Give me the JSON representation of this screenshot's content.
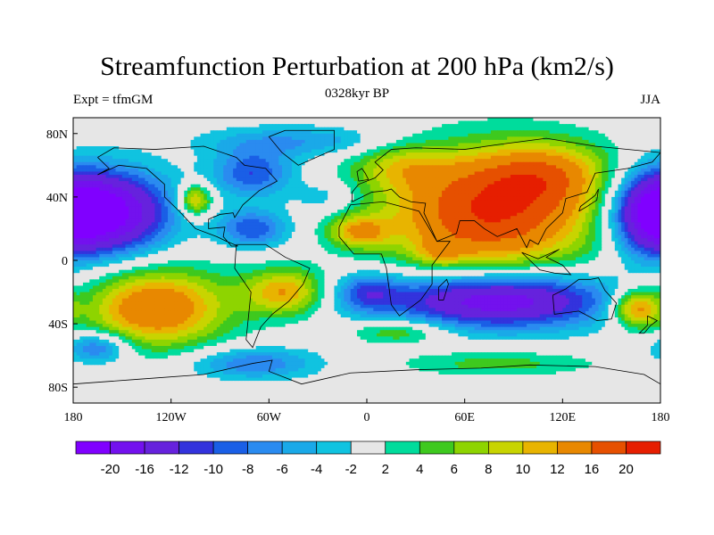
{
  "title": "Streamfunction Perturbation at 200 hPa (km2/s)",
  "subtitle_left": "Expt = tfmGM",
  "subtitle_center": "0328kyr BP",
  "subtitle_right": "JJA",
  "map": {
    "lon_range": [
      -180,
      180
    ],
    "lat_range": [
      -90,
      90
    ],
    "background_value_color": "#e6e6e6",
    "x_ticks": [
      {
        "lon": -180,
        "label": "180"
      },
      {
        "lon": -120,
        "label": "120W"
      },
      {
        "lon": -60,
        "label": "60W"
      },
      {
        "lon": 0,
        "label": "0"
      },
      {
        "lon": 60,
        "label": "60E"
      },
      {
        "lon": 120,
        "label": "120E"
      },
      {
        "lon": 180,
        "label": "180"
      }
    ],
    "y_ticks": [
      {
        "lat": 80,
        "label": "80N"
      },
      {
        "lat": 40,
        "label": "40N"
      },
      {
        "lat": 0,
        "label": "0"
      },
      {
        "lat": -40,
        "label": "40S"
      },
      {
        "lat": -80,
        "label": "80S"
      }
    ],
    "features": [
      {
        "name": "asia-high",
        "lon": 75,
        "lat": 30,
        "rlon": 65,
        "rlat": 38,
        "peak": 20
      },
      {
        "name": "east-asia-high-extension",
        "lon": 110,
        "lat": 55,
        "rlon": 40,
        "rlat": 20,
        "peak": 9
      },
      {
        "name": "europe-ridge",
        "lon": 20,
        "lat": 60,
        "rlon": 30,
        "rlat": 15,
        "peak": 6
      },
      {
        "name": "north-pacific-low-west",
        "lon": 175,
        "lat": 30,
        "rlon": 25,
        "rlat": 26,
        "peak": -20
      },
      {
        "name": "north-pacific-low-east",
        "lon": -155,
        "lat": 30,
        "rlon": 35,
        "rlat": 26,
        "peak": -20
      },
      {
        "name": "pacific-small-high",
        "lon": -105,
        "lat": 38,
        "rlon": 10,
        "rlat": 10,
        "peak": 12
      },
      {
        "name": "north-america-low",
        "lon": -70,
        "lat": 55,
        "rlon": 25,
        "rlat": 15,
        "peak": -10
      },
      {
        "name": "caribbean-low",
        "lon": -70,
        "lat": 20,
        "rlon": 22,
        "rlat": 12,
        "peak": -10
      },
      {
        "name": "arctic-low",
        "lon": -40,
        "lat": 75,
        "rlon": 60,
        "rlat": 10,
        "peak": -6
      },
      {
        "name": "atlantic-low",
        "lon": -25,
        "lat": 40,
        "rlon": 20,
        "rlat": 10,
        "peak": -4
      },
      {
        "name": "africa-high",
        "lon": -5,
        "lat": 18,
        "rlon": 18,
        "rlat": 10,
        "peak": 10
      },
      {
        "name": "arabia-high",
        "lon": 45,
        "lat": 5,
        "rlon": 14,
        "rlat": 8,
        "peak": 5
      },
      {
        "name": "indian-ocean-low",
        "lon": 80,
        "lat": -25,
        "rlon": 70,
        "rlat": 18,
        "peak": -20
      },
      {
        "name": "south-pacific-high",
        "lon": -130,
        "lat": -30,
        "rlon": 45,
        "rlat": 25,
        "peak": 16
      },
      {
        "name": "south-america-high",
        "lon": -50,
        "lat": -20,
        "rlon": 25,
        "rlat": 15,
        "peak": 12
      },
      {
        "name": "south-atlantic-low",
        "lon": 0,
        "lat": -20,
        "rlon": 20,
        "rlat": 12,
        "peak": -8
      },
      {
        "name": "south-atlantic-high",
        "lon": 20,
        "lat": -45,
        "rlon": 30,
        "rlat": 8,
        "peak": 7
      },
      {
        "name": "southern-ocean-high",
        "lon": 80,
        "lat": -65,
        "rlon": 60,
        "rlat": 8,
        "peak": 5
      },
      {
        "name": "antarctica-low",
        "lon": -70,
        "lat": -65,
        "rlon": 40,
        "rlat": 10,
        "peak": -8
      },
      {
        "name": "east-pacific-low",
        "lon": -165,
        "lat": -55,
        "rlon": 20,
        "rlat": 10,
        "peak": -10
      },
      {
        "name": "australia-high",
        "lon": 165,
        "lat": -30,
        "rlon": 15,
        "rlat": 12,
        "peak": 14
      }
    ]
  },
  "colorbar": {
    "colors": [
      "#8000ff",
      "#7311ee",
      "#6622dd",
      "#3333dd",
      "#1a5fe6",
      "#2a8bf0",
      "#1aa9e8",
      "#10c3e0",
      "#e6e6e6",
      "#00dc9c",
      "#3ec91e",
      "#8ed400",
      "#c8d400",
      "#e8b400",
      "#e88800",
      "#e65000",
      "#e61e00"
    ],
    "labels": [
      "-20",
      "-16",
      "-12",
      "-10",
      "-8",
      "-6",
      "-4",
      "-2",
      "2",
      "4",
      "6",
      "8",
      "10",
      "12",
      "16",
      "20"
    ]
  }
}
